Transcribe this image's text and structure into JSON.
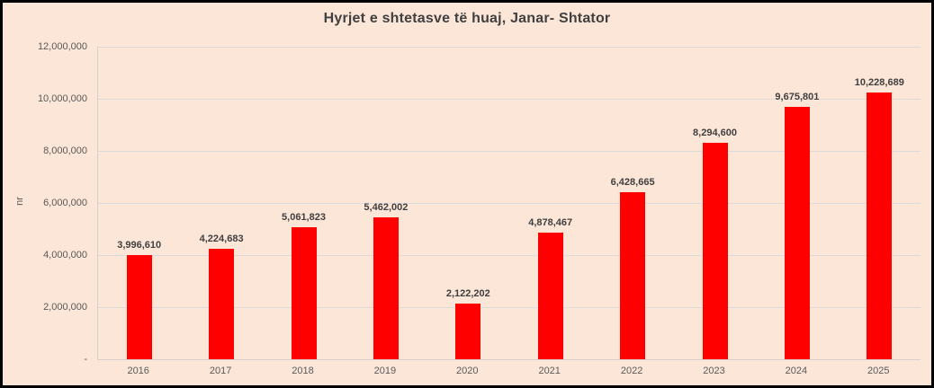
{
  "chart_data": {
    "type": "bar",
    "title": "Hyrjet e shtetasve të huaj, Janar- Shtator",
    "categories": [
      "2016",
      "2017",
      "2018",
      "2019",
      "2020",
      "2021",
      "2022",
      "2023",
      "2024",
      "2025"
    ],
    "values": [
      3996610,
      4224683,
      5061823,
      5462002,
      2122202,
      4878467,
      6428665,
      8294600,
      9675801,
      10228689
    ],
    "value_labels": [
      "3,996,610",
      "4,224,683",
      "5,061,823",
      "5,462,002",
      "2,122,202",
      "4,878,467",
      "6,428,665",
      "8,294,600",
      "9,675,801",
      "10,228,689"
    ],
    "xlabel": "",
    "ylabel": "nr",
    "ylim": [
      0,
      12000000
    ],
    "ytick_step": 2000000,
    "ytick_labels_bottom_to_top": [
      "-",
      "2,000,000",
      "4,000,000",
      "6,000,000",
      "8,000,000",
      "10,000,000",
      "12,000,000"
    ],
    "grid": true,
    "legend": false
  },
  "colors": {
    "background": "#FCE6D8",
    "bar": "#FF0000",
    "gridline": "#DBDBDB",
    "axis_line": "#D6D0CA",
    "title_text": "#404040",
    "tick_text": "#595959",
    "data_label_text": "#3F3F3F",
    "border": "#000000"
  }
}
